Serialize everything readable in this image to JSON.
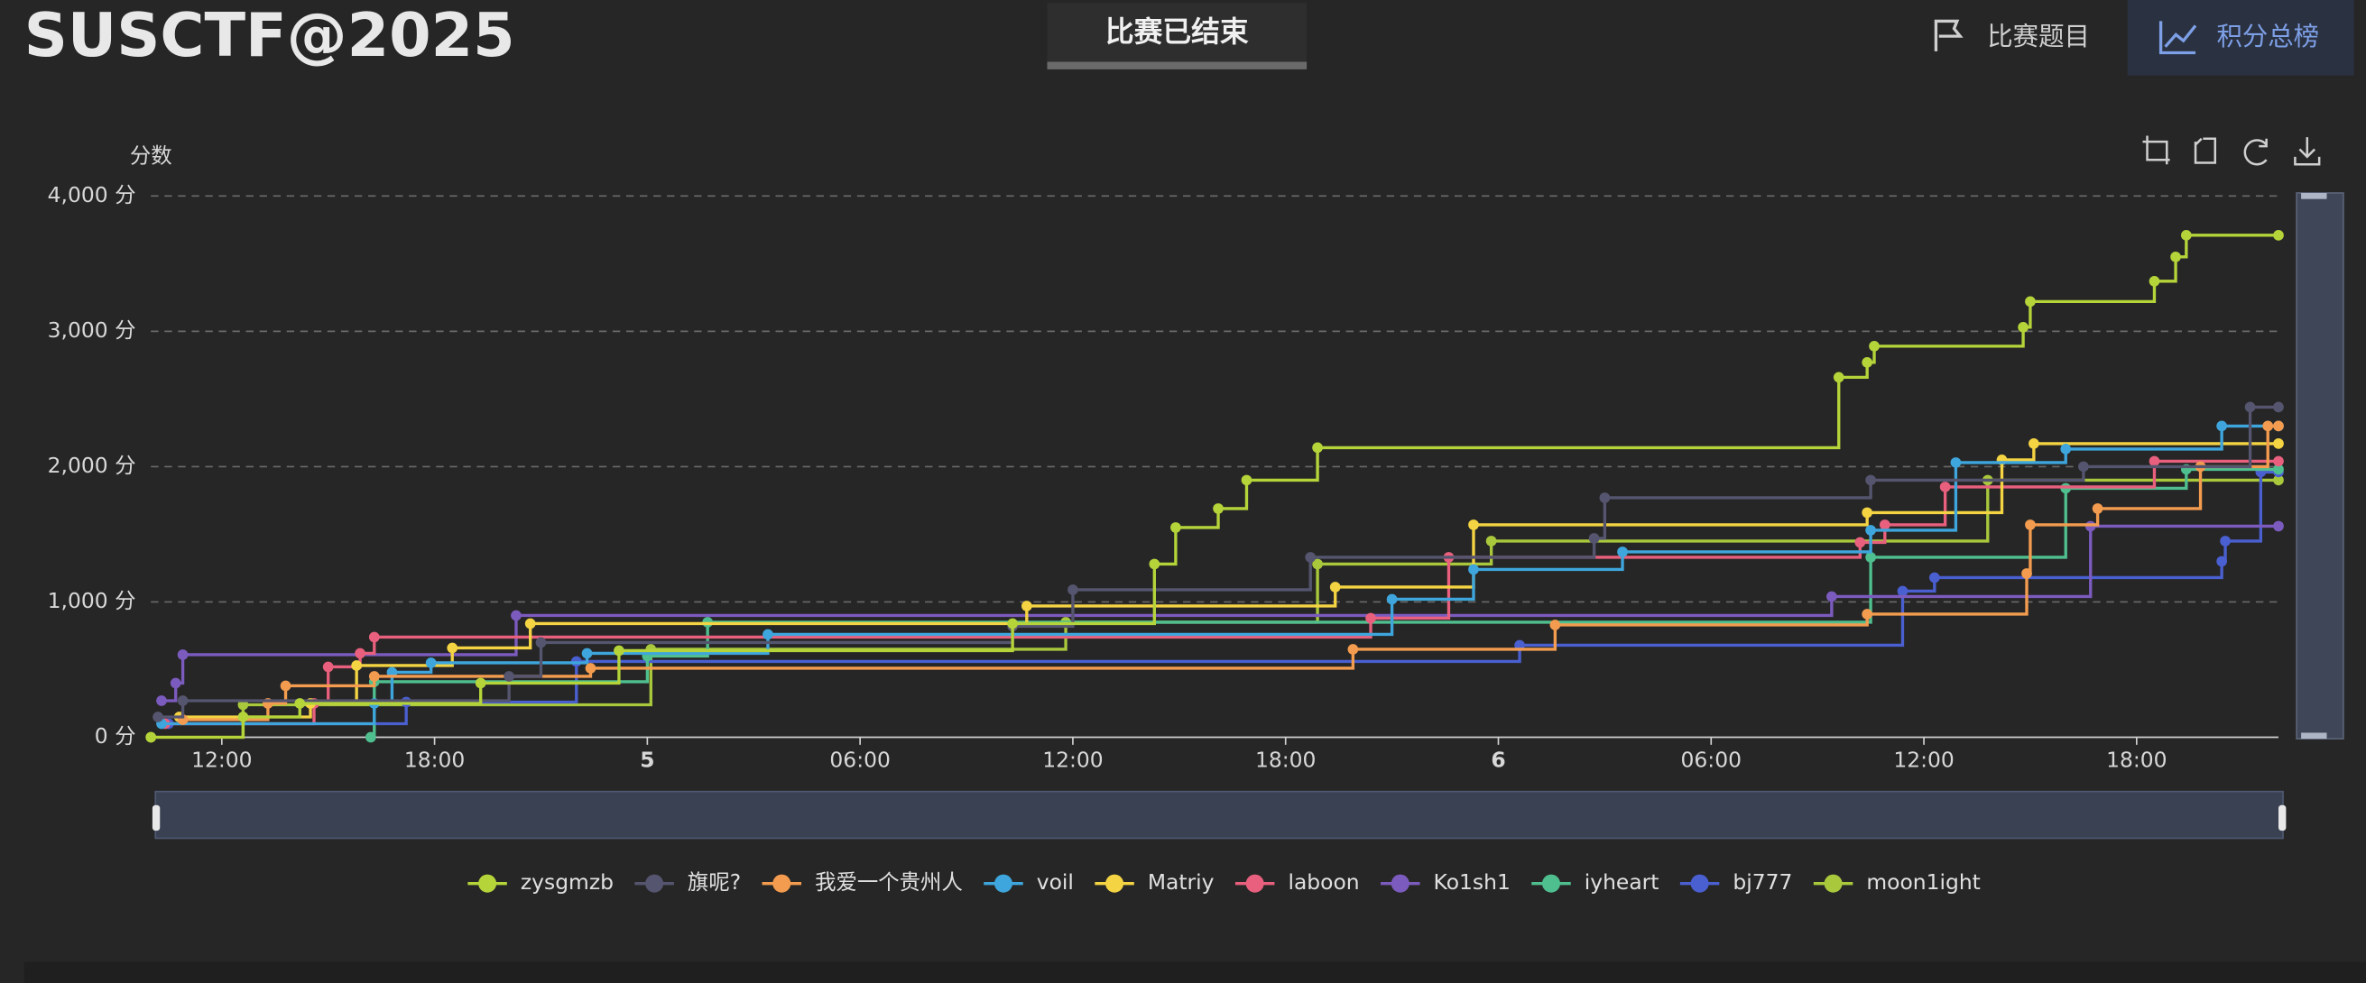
{
  "header": {
    "logo": "SUSCTF@2025",
    "status": "比赛已结束",
    "nav": [
      "比赛题目",
      "积分总榜"
    ]
  },
  "chart_data": {
    "type": "line",
    "step": "end",
    "ylabel": "分数",
    "xlim": [
      10,
      70
    ],
    "xticks": [
      {
        "value": 12,
        "label": "12:00"
      },
      {
        "value": 18,
        "label": "18:00"
      },
      {
        "value": 24,
        "label": "5"
      },
      {
        "value": 30,
        "label": "06:00"
      },
      {
        "value": 36,
        "label": "12:00"
      },
      {
        "value": 42,
        "label": "18:00"
      },
      {
        "value": 48,
        "label": "6"
      },
      {
        "value": 54,
        "label": "06:00"
      },
      {
        "value": 60,
        "label": "12:00"
      },
      {
        "value": 66,
        "label": "18:00"
      }
    ],
    "ylim": [
      0,
      4000
    ],
    "yticks": [
      {
        "value": 0,
        "label": "0 分"
      },
      {
        "value": 1000,
        "label": "1,000 分"
      },
      {
        "value": 2000,
        "label": "2,000 分"
      },
      {
        "value": 3000,
        "label": "3,000 分"
      },
      {
        "value": 4000,
        "label": "4,000 分"
      }
    ],
    "grid": true,
    "legend": "bottom",
    "series": [
      {
        "name": "zysgmzb",
        "color": "#b5d43a",
        "x": [
          10.0,
          12.6,
          14.2,
          19.3,
          23.2,
          34.3,
          38.3,
          38.9,
          40.1,
          40.9,
          42.9,
          57.6,
          58.4,
          58.6,
          62.8,
          63.0,
          66.5,
          67.1,
          67.4,
          70
        ],
        "values": [
          0,
          150,
          250,
          400,
          640,
          840,
          1280,
          1550,
          1690,
          1900,
          2140,
          2660,
          2770,
          2890,
          3030,
          3220,
          3370,
          3550,
          3710,
          3710
        ]
      },
      {
        "name": "旗呢?",
        "color": "#55556f",
        "x": [
          10.2,
          10.9,
          20.1,
          21.0,
          34.3,
          36.0,
          42.7,
          50.7,
          51.0,
          58.5,
          64.5,
          69.2,
          70
        ],
        "values": [
          150,
          270,
          450,
          700,
          820,
          1090,
          1330,
          1470,
          1770,
          1900,
          2000,
          2440,
          2440
        ]
      },
      {
        "name": "我爱一个贵州人",
        "color": "#f39c4f",
        "x": [
          10.9,
          13.3,
          13.8,
          16.3,
          22.4,
          43.9,
          49.6,
          58.4,
          62.9,
          63.0,
          64.9,
          67.8,
          69.7,
          70
        ],
        "values": [
          130,
          250,
          380,
          450,
          510,
          650,
          830,
          910,
          1210,
          1570,
          1690,
          2000,
          2300,
          2300
        ]
      },
      {
        "name": "voil",
        "color": "#3ea6dc",
        "x": [
          10.3,
          16.3,
          16.8,
          17.9,
          22.3,
          27.4,
          45.0,
          47.3,
          51.5,
          58.5,
          60.9,
          64.0,
          68.4,
          70
        ],
        "values": [
          100,
          250,
          480,
          550,
          620,
          760,
          1020,
          1240,
          1370,
          1530,
          2030,
          2130,
          2300,
          2300
        ]
      },
      {
        "name": "Matriy",
        "color": "#f4d443",
        "x": [
          10.8,
          14.5,
          15.8,
          18.5,
          20.7,
          34.7,
          43.4,
          47.3,
          58.4,
          62.2,
          63.1,
          70
        ],
        "values": [
          150,
          250,
          530,
          660,
          840,
          970,
          1110,
          1570,
          1660,
          2050,
          2170,
          2170
        ]
      },
      {
        "name": "laboon",
        "color": "#e8607d",
        "x": [
          10.4,
          14.6,
          15.0,
          15.9,
          16.3,
          44.4,
          46.6,
          58.2,
          58.9,
          60.6,
          66.5,
          70
        ],
        "values": [
          100,
          250,
          520,
          620,
          740,
          880,
          1330,
          1440,
          1570,
          1850,
          2040,
          2040
        ]
      },
      {
        "name": "Ko1sh1",
        "color": "#7c5bbf",
        "x": [
          10.3,
          10.7,
          10.9,
          20.3,
          57.4,
          64.7,
          70
        ],
        "values": [
          270,
          400,
          610,
          900,
          1040,
          1560,
          1560
        ]
      },
      {
        "name": "iyheart",
        "color": "#4fbf8f",
        "x": [
          16.2,
          16.3,
          24.0,
          25.7,
          58.5,
          64.0,
          67.4,
          70
        ],
        "values": [
          0,
          410,
          600,
          850,
          1330,
          1840,
          1980,
          1980
        ]
      },
      {
        "name": "bj777",
        "color": "#4a5fd0",
        "x": [
          10.5,
          17.2,
          22.0,
          48.6,
          59.4,
          60.3,
          68.4,
          68.5,
          69.5,
          70
        ],
        "values": [
          100,
          260,
          560,
          680,
          1080,
          1180,
          1300,
          1450,
          1960,
          1960
        ]
      },
      {
        "name": "moon1ight",
        "color": "#a9c83c",
        "x": [
          10.0,
          12.6,
          24.1,
          35.8,
          42.9,
          47.8,
          61.8,
          70
        ],
        "values": [
          0,
          240,
          650,
          850,
          1280,
          1450,
          1900,
          1900
        ]
      }
    ]
  }
}
